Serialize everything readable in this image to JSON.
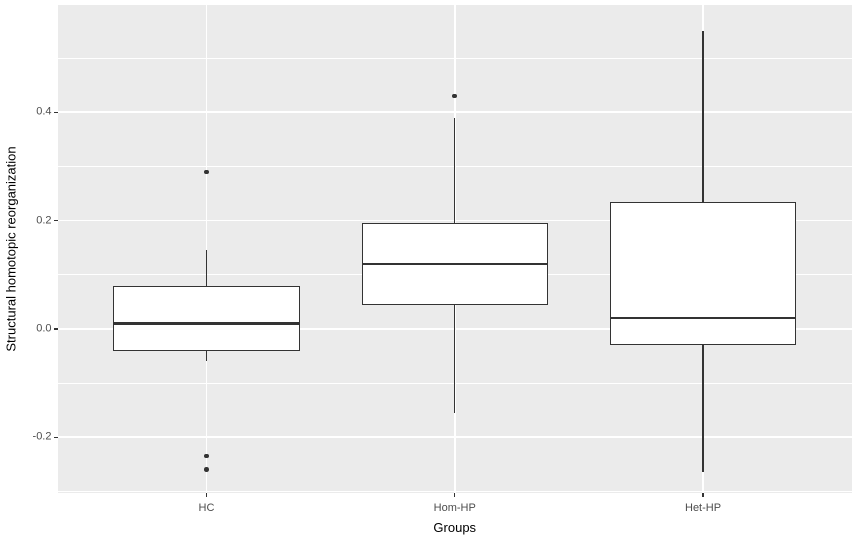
{
  "chart_data": {
    "type": "boxplot",
    "title": "",
    "xlabel": "Groups",
    "ylabel": "Structural homotopic reorganization",
    "categories": [
      "HC",
      "Hom-HP",
      "Het-HP"
    ],
    "series": [
      {
        "name": "HC",
        "whisker_low": -0.06,
        "q1": -0.04,
        "median": 0.01,
        "q3": 0.08,
        "whisker_high": 0.145,
        "outliers": [
          0.29,
          -0.235,
          -0.26
        ]
      },
      {
        "name": "Hom-HP",
        "whisker_low": -0.155,
        "q1": 0.045,
        "median": 0.12,
        "q3": 0.195,
        "whisker_high": 0.39,
        "outliers": [
          0.43
        ]
      },
      {
        "name": "Het-HP",
        "whisker_low": -0.265,
        "q1": -0.03,
        "median": 0.02,
        "q3": 0.235,
        "whisker_high": 0.55,
        "outliers": []
      }
    ],
    "ylim": [
      -0.303,
      0.598
    ],
    "y_major_ticks": [
      -0.2,
      0.0,
      0.2,
      0.4
    ],
    "y_major_labels": [
      "-0.2",
      "0.0",
      "0.2",
      "0.4"
    ],
    "y_minor_ticks": [
      -0.3,
      -0.1,
      0.1,
      0.3,
      0.5
    ],
    "grid": true,
    "legend": "none",
    "colors": {
      "page_background": "#FFFFFF",
      "panel_background": "#EBEBEB",
      "grid": "#FFFFFF",
      "box_fill": "#FFFFFF",
      "box_stroke": "#333333",
      "median_stroke": "#333333",
      "outlier_fill": "#333333",
      "tick_mark": "#333333",
      "tick_label": "#4D4D4D",
      "axis_title": "#000000"
    }
  }
}
